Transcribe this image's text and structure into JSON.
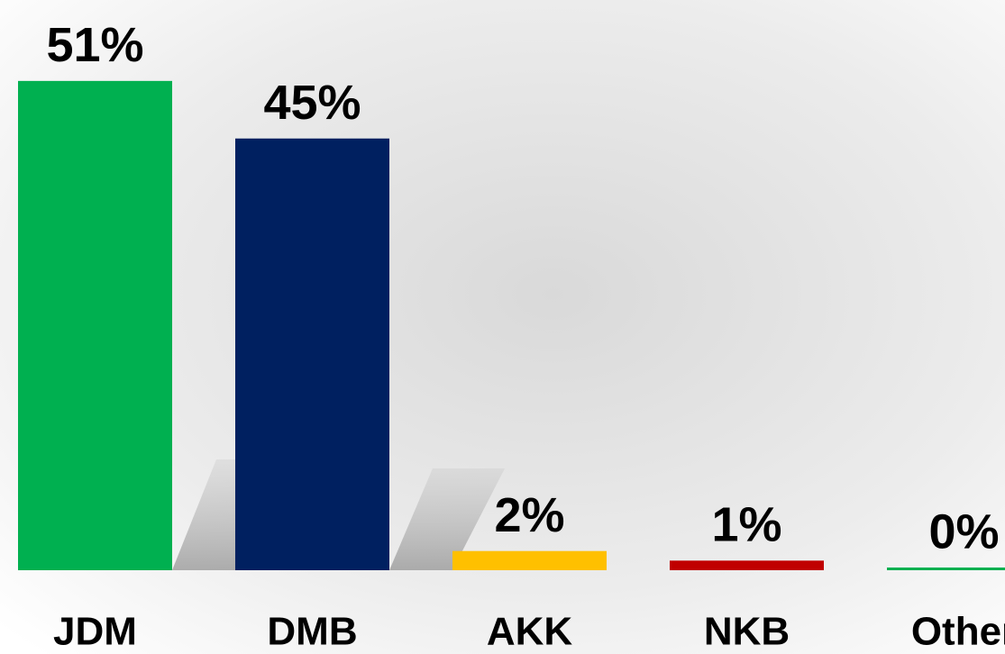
{
  "chart_data": {
    "type": "bar",
    "categories": [
      "JDM",
      "DMB",
      "AKK",
      "NKB",
      "Other"
    ],
    "values": [
      51,
      45,
      2,
      1,
      0
    ],
    "value_labels": [
      "51%",
      "45%",
      "2%",
      "1%",
      "0%"
    ],
    "colors": [
      "#00b050",
      "#002060",
      "#ffc000",
      "#c00000",
      "#00b050"
    ]
  }
}
